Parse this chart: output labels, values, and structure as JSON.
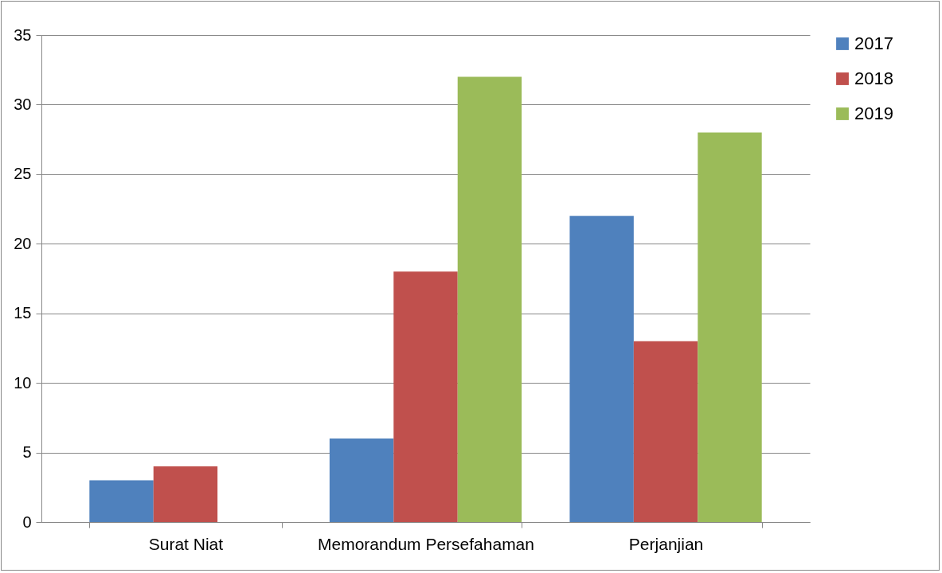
{
  "chart_data": {
    "type": "bar",
    "categories": [
      "Surat Niat",
      "Memorandum Persefahaman",
      "Perjanjian"
    ],
    "series": [
      {
        "name": "2017",
        "color": "#4f81bd",
        "values": [
          3,
          6,
          22
        ]
      },
      {
        "name": "2018",
        "color": "#c0504d",
        "values": [
          4,
          18,
          13
        ]
      },
      {
        "name": "2019",
        "color": "#9bbb59",
        "values": [
          null,
          32,
          28
        ]
      }
    ],
    "ylim": [
      0,
      35
    ],
    "yticks": [
      0,
      5,
      10,
      15,
      20,
      25,
      30,
      35
    ],
    "grid": "y",
    "legend": "right"
  }
}
